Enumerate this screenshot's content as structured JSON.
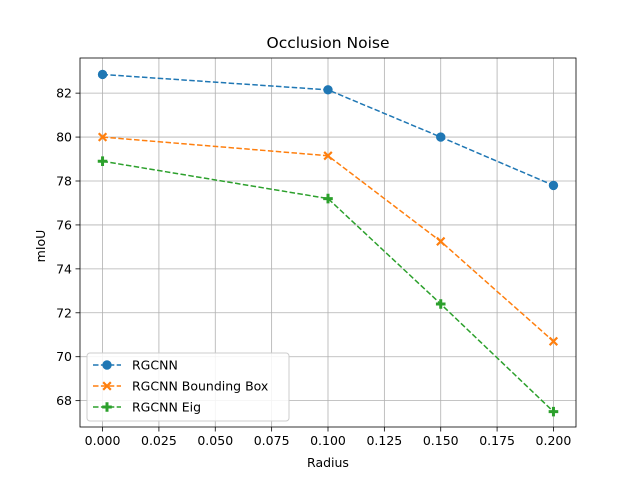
{
  "chart_data": {
    "type": "line",
    "title": "Occlusion Noise",
    "xlabel": "Radius",
    "ylabel": "mIoU",
    "x": [
      0.0,
      0.1,
      0.15,
      0.2
    ],
    "xlim": [
      -0.01,
      0.21
    ],
    "ylim": [
      66.8,
      83.6
    ],
    "xticks": [
      0.0,
      0.025,
      0.05,
      0.075,
      0.1,
      0.125,
      0.15,
      0.175,
      0.2
    ],
    "xtick_labels": [
      "0.000",
      "0.025",
      "0.050",
      "0.075",
      "0.100",
      "0.125",
      "0.150",
      "0.175",
      "0.200"
    ],
    "yticks": [
      68,
      70,
      72,
      74,
      76,
      78,
      80,
      82
    ],
    "ytick_labels": [
      "68",
      "70",
      "72",
      "74",
      "76",
      "78",
      "80",
      "82"
    ],
    "grid": true,
    "legend_position": "lower-left",
    "series": [
      {
        "name": "RGCNN",
        "values": [
          82.85,
          82.15,
          80.0,
          77.8
        ],
        "color": "#1f77b4",
        "marker": "circle",
        "linestyle": "dashed"
      },
      {
        "name": "RGCNN Bounding Box",
        "values": [
          80.0,
          79.15,
          75.25,
          70.7
        ],
        "color": "#ff7f0e",
        "marker": "x-filled",
        "linestyle": "dashed"
      },
      {
        "name": "RGCNN Eig",
        "values": [
          78.9,
          77.2,
          72.4,
          67.5
        ],
        "color": "#2ca02c",
        "marker": "plus-filled",
        "linestyle": "dashed"
      }
    ]
  }
}
